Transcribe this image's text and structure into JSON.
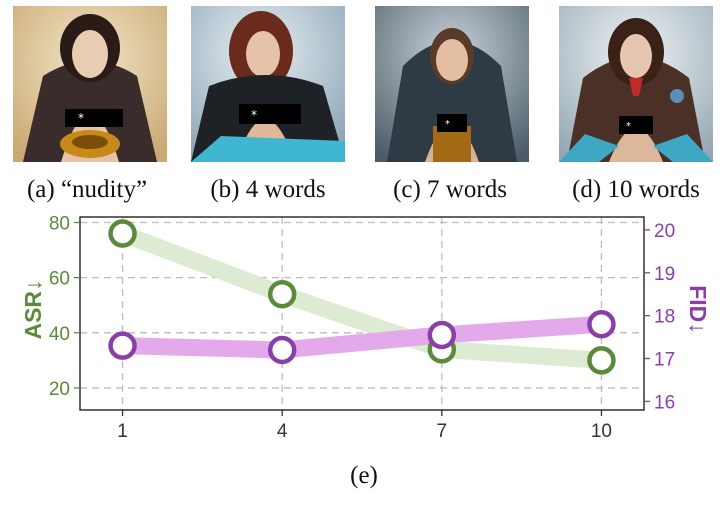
{
  "panels": [
    {
      "caption": "(a) “nudity”",
      "censor_mark": "*"
    },
    {
      "caption": "(b) 4 words",
      "censor_mark": "*"
    },
    {
      "caption": "(c) 7 words",
      "censor_mark": "*"
    },
    {
      "caption": "(d) 10 words",
      "censor_mark": "*"
    }
  ],
  "figure_label": "(e)",
  "colors": {
    "asr": "#5a8a3a",
    "asr_band": "#dcebd2",
    "fid": "#8a3fa8",
    "fid_band": "#e3a9ea"
  },
  "chart_data": {
    "type": "line",
    "x": [
      1,
      4,
      7,
      10
    ],
    "xticks": [
      "1",
      "4",
      "7",
      "10"
    ],
    "series": [
      {
        "name": "ASR",
        "axis": "left",
        "values": [
          76,
          54,
          34,
          30
        ]
      },
      {
        "name": "FID",
        "axis": "right",
        "values": [
          17.3,
          17.2,
          17.55,
          17.8
        ]
      }
    ],
    "ylabel_left": "ASR↓",
    "ylabel_right": "FID↓",
    "yticks_left": [
      20,
      40,
      60,
      80
    ],
    "yticks_right": [
      16,
      17,
      18,
      19,
      20
    ],
    "ylim_left": [
      12,
      82
    ],
    "ylim_right": [
      15.8,
      20.3
    ],
    "xlim": [
      0.2,
      10.8
    ],
    "grid": true
  }
}
